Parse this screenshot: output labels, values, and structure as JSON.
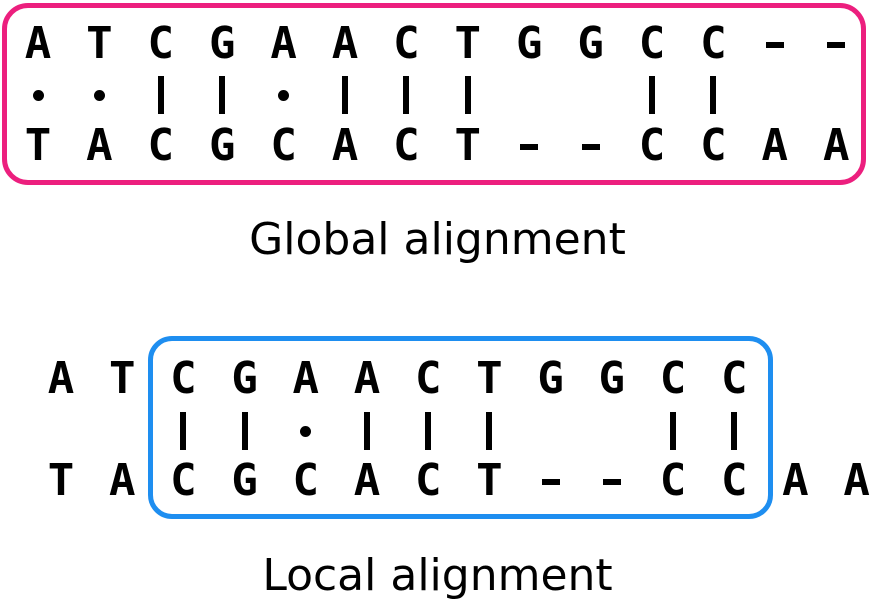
{
  "global_alignment": {
    "caption": "Global alignment",
    "top_sequence": [
      "A",
      "T",
      "C",
      "G",
      "A",
      "A",
      "C",
      "T",
      "G",
      "G",
      "C",
      "C",
      "-",
      "-"
    ],
    "match_line": [
      "•",
      "•",
      "|",
      "|",
      "•",
      "|",
      "|",
      "|",
      "",
      "",
      "|",
      "|",
      "",
      ""
    ],
    "bottom_sequence": [
      "T",
      "A",
      "C",
      "G",
      "C",
      "A",
      "C",
      "T",
      "-",
      "-",
      "C",
      "C",
      "A",
      "A"
    ],
    "frame_color": "#ec1f7e"
  },
  "local_alignment": {
    "caption": "Local alignment",
    "top_sequence": [
      "A",
      "T",
      "C",
      "G",
      "A",
      "A",
      "C",
      "T",
      "G",
      "G",
      "C",
      "C"
    ],
    "match_line": [
      "",
      "",
      "|",
      "|",
      "•",
      "|",
      "|",
      "|",
      "",
      "",
      "|",
      "|"
    ],
    "bottom_sequence": [
      "T",
      "A",
      "C",
      "G",
      "C",
      "A",
      "C",
      "T",
      "-",
      "-",
      "C",
      "C",
      "A",
      "A"
    ],
    "frame_color": "#1e8ef0"
  }
}
